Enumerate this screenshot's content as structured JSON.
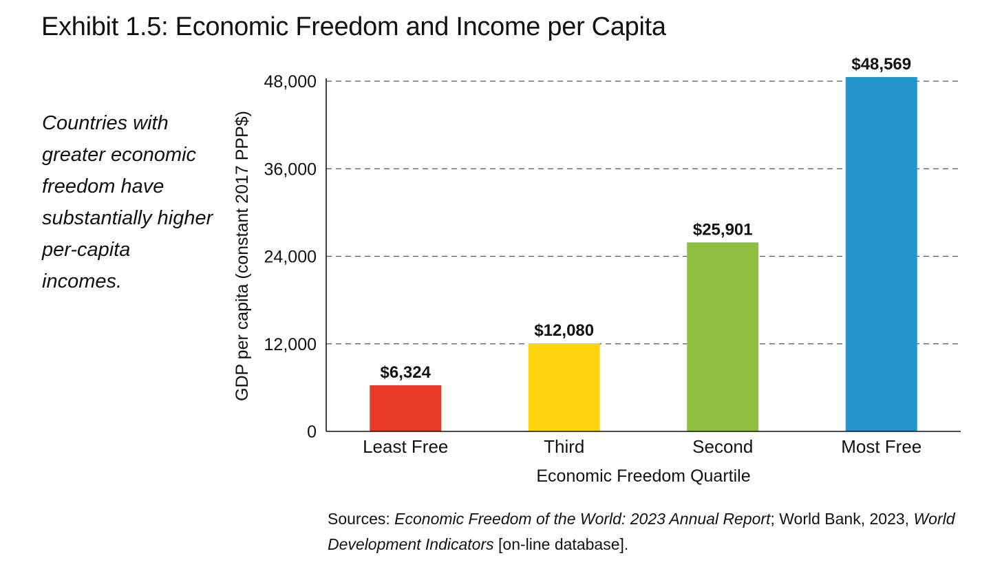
{
  "title": "Exhibit 1.5: Economic Freedom and Income per Capita",
  "caption": "Countries with greater economic freedom have substantially higher per-capita incomes.",
  "sources": {
    "prefix": "Sources: ",
    "report_title": "Economic Freedom of the World: 2023 Annual Report",
    "middle": "; World Bank, 2023, ",
    "db_title": "World Development Indicators",
    "suffix": " [on-line database]."
  },
  "chart_data": {
    "type": "bar",
    "categories": [
      "Least Free",
      "Third",
      "Second",
      "Most Free"
    ],
    "values": [
      6324,
      12080,
      25901,
      48569
    ],
    "value_labels": [
      "$6,324",
      "$12,080",
      "$25,901",
      "$48,569"
    ],
    "colors": [
      "#e63a27",
      "#fed20a",
      "#8fc042",
      "#2494cc"
    ],
    "xlabel": "Economic Freedom Quartile",
    "ylabel": "GDP per capita (constant 2017 PPP$)",
    "ylim": [
      0,
      48000
    ],
    "yticks": [
      0,
      12000,
      24000,
      36000,
      48000
    ],
    "ytick_labels": [
      "0",
      "12,000",
      "24,000",
      "36,000",
      "48,000"
    ],
    "grid": "dashed horizontal",
    "legend": "none"
  }
}
